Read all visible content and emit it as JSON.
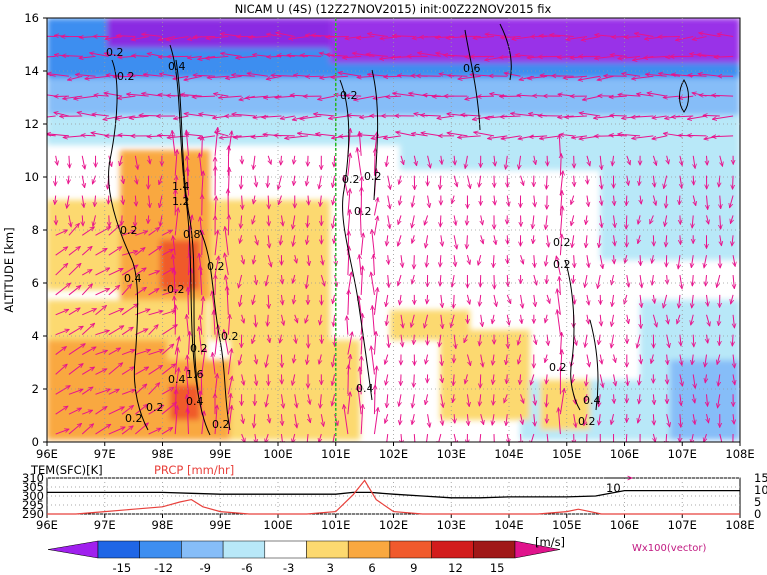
{
  "chart_data": [
    {
      "type": "heatmap",
      "title": "NICAM U (4S) (12Z27NOV2015) init:00Z22NOV2015 fix",
      "ylabel": "ALTITUDE [km]",
      "xlabel": "",
      "x_ticks": [
        "96E",
        "97E",
        "98E",
        "99E",
        "100E",
        "101E",
        "102E",
        "103E",
        "104E",
        "105E",
        "106E",
        "107E",
        "108E"
      ],
      "xlim": [
        96,
        108
      ],
      "y_ticks": [
        "0",
        "2",
        "4",
        "6",
        "8",
        "10",
        "12",
        "14",
        "16"
      ],
      "ylim": [
        0,
        16
      ],
      "vertical_marker_lon": 101,
      "contour_labels": [
        "0.2",
        "0.2",
        "0.4",
        "0.2",
        "1.4",
        "1.2",
        "0.8",
        "0.2",
        "0.4",
        "-0.2",
        "0.2",
        "0.2",
        "0.4",
        "1.6",
        "0.2",
        "0.4",
        "0.2",
        "0.2",
        "0.2",
        "0.2",
        "0.2",
        "0.2",
        "0.4",
        "0.6",
        "0.2",
        "0.2",
        "0.2",
        "0.4",
        "0.2"
      ],
      "colorbar": {
        "levels": [
          "-15",
          "-12",
          "-9",
          "-6",
          "-3",
          "3",
          "6",
          "9",
          "12",
          "15"
        ],
        "unit": "[m/s]",
        "colors": [
          "#a020ee",
          "#1f66e6",
          "#3e8ef0",
          "#86bdf8",
          "#b8e8f8",
          "#ffffff",
          "#fcd970",
          "#f9a840",
          "#f05a2c",
          "#d21c1c",
          "#a01818",
          "#e0138c"
        ],
        "vector_note": "Wx100(vector)"
      },
      "vector_color": "#e8138c"
    },
    {
      "type": "line",
      "x_ticks": [
        "96E",
        "97E",
        "98E",
        "99E",
        "100E",
        "101E",
        "102E",
        "103E",
        "104E",
        "105E",
        "106E",
        "107E",
        "108E"
      ],
      "xlim": [
        96,
        108
      ],
      "series": [
        {
          "name": "TEM(SFC)[K]",
          "color": "#000000",
          "ylim": [
            290,
            310
          ],
          "y_ticks": [
            "310",
            "305",
            "300",
            "295",
            "290"
          ],
          "x": [
            96,
            96.5,
            97,
            97.5,
            98,
            98.5,
            99,
            99.5,
            100,
            100.5,
            101,
            101.3,
            101.6,
            102,
            102.5,
            103,
            103.5,
            104,
            104.5,
            105,
            105.5,
            106,
            106.5,
            107,
            107.5,
            108
          ],
          "values": [
            302,
            302,
            302,
            302,
            302,
            301.5,
            301,
            301,
            301,
            301,
            301,
            302,
            302,
            301,
            300,
            299,
            299,
            299.5,
            299.5,
            299.5,
            300,
            303,
            303,
            303,
            303,
            303
          ]
        },
        {
          "name": "PRCP [mm/hr]",
          "color": "#e8413c",
          "ylim": [
            0,
            15
          ],
          "y_ticks": [
            "15",
            "10",
            "5",
            "0"
          ],
          "x": [
            96,
            96.5,
            97,
            97.5,
            98,
            98.3,
            98.5,
            98.7,
            99,
            99.5,
            100,
            100.5,
            101,
            101.3,
            101.5,
            101.7,
            102,
            102.5,
            103,
            103.5,
            104,
            104.5,
            105,
            105.2,
            105.4,
            105.6,
            106,
            107,
            108
          ],
          "values": [
            0,
            0,
            1,
            2,
            3,
            5,
            6,
            3,
            1,
            0,
            0,
            0,
            1,
            8,
            14,
            6,
            1,
            0,
            0,
            0,
            0,
            0,
            1,
            2,
            1,
            0,
            0,
            0,
            0
          ]
        }
      ],
      "vector_readout": "10"
    }
  ]
}
